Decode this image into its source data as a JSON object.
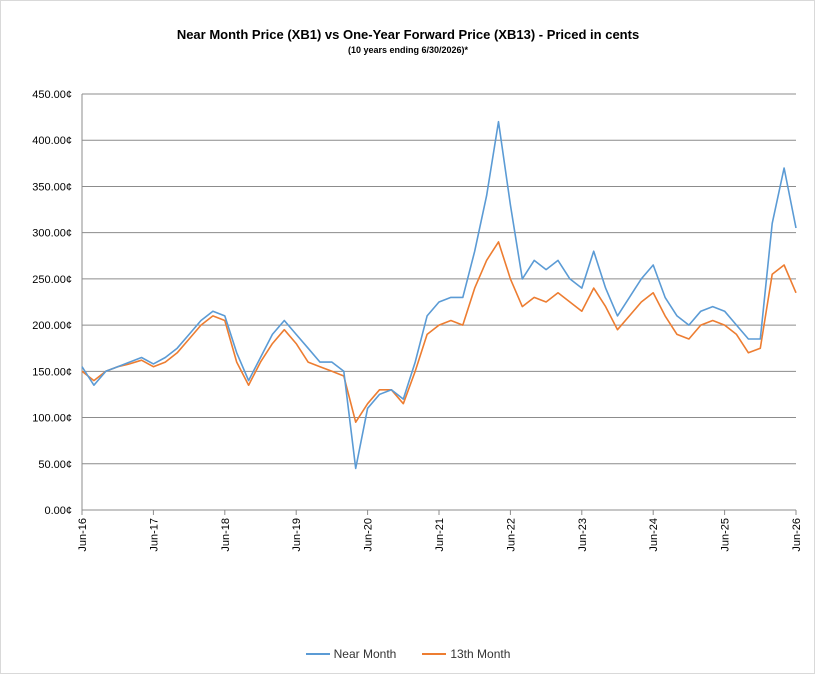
{
  "chart_data": {
    "type": "line",
    "title": "Near Month Price (XB1) vs One-Year Forward Price (XB13) - Priced in cents",
    "subtitle": "(10 years ending  6/30/2026)*",
    "y_ticks": [
      "0.00¢",
      "50.00¢",
      "100.00¢",
      "150.00¢",
      "200.00¢",
      "250.00¢",
      "300.00¢",
      "350.00¢",
      "400.00¢",
      "450.00¢"
    ],
    "ylim": [
      0,
      450
    ],
    "x_ticks": [
      "Jun-16",
      "Jun-17",
      "Jun-18",
      "Jun-19",
      "Jun-20",
      "Jun-21",
      "Jun-22",
      "Jun-23",
      "Jun-24",
      "Jun-25",
      "Jun-26"
    ],
    "xlim": [
      "2016-06",
      "2026-06"
    ],
    "grid": "horizontal",
    "legend_position": "bottom",
    "series": [
      {
        "name": "Near Month",
        "color": "#5b9bd5",
        "x": [
          "2016-06",
          "2016-08",
          "2016-10",
          "2016-12",
          "2017-02",
          "2017-04",
          "2017-06",
          "2017-08",
          "2017-10",
          "2017-12",
          "2018-02",
          "2018-04",
          "2018-06",
          "2018-08",
          "2018-10",
          "2018-12",
          "2019-02",
          "2019-04",
          "2019-06",
          "2019-08",
          "2019-10",
          "2019-12",
          "2020-02",
          "2020-04",
          "2020-06",
          "2020-08",
          "2020-10",
          "2020-12",
          "2021-02",
          "2021-04",
          "2021-06",
          "2021-08",
          "2021-10",
          "2021-12",
          "2022-02",
          "2022-04",
          "2022-06",
          "2022-08",
          "2022-10",
          "2022-12",
          "2023-02",
          "2023-04",
          "2023-06",
          "2023-08",
          "2023-10",
          "2023-12",
          "2024-02",
          "2024-04",
          "2024-06",
          "2024-08",
          "2024-10",
          "2024-12",
          "2025-02",
          "2025-04",
          "2025-06",
          "2025-08",
          "2025-10",
          "2025-12",
          "2026-02",
          "2026-04",
          "2026-06"
        ],
        "values": [
          155,
          135,
          150,
          155,
          160,
          165,
          158,
          165,
          175,
          190,
          205,
          215,
          210,
          170,
          140,
          165,
          190,
          205,
          190,
          175,
          160,
          160,
          150,
          45,
          110,
          125,
          130,
          120,
          160,
          210,
          225,
          230,
          230,
          280,
          340,
          420,
          330,
          250,
          270,
          260,
          270,
          250,
          240,
          280,
          240,
          210,
          230,
          250,
          265,
          230,
          210,
          200,
          215,
          220,
          215,
          200,
          185,
          185,
          310,
          370,
          305
        ]
      },
      {
        "name": "13th Month",
        "color": "#ed7d31",
        "x": [
          "2016-06",
          "2016-08",
          "2016-10",
          "2016-12",
          "2017-02",
          "2017-04",
          "2017-06",
          "2017-08",
          "2017-10",
          "2017-12",
          "2018-02",
          "2018-04",
          "2018-06",
          "2018-08",
          "2018-10",
          "2018-12",
          "2019-02",
          "2019-04",
          "2019-06",
          "2019-08",
          "2019-10",
          "2019-12",
          "2020-02",
          "2020-04",
          "2020-06",
          "2020-08",
          "2020-10",
          "2020-12",
          "2021-02",
          "2021-04",
          "2021-06",
          "2021-08",
          "2021-10",
          "2021-12",
          "2022-02",
          "2022-04",
          "2022-06",
          "2022-08",
          "2022-10",
          "2022-12",
          "2023-02",
          "2023-04",
          "2023-06",
          "2023-08",
          "2023-10",
          "2023-12",
          "2024-02",
          "2024-04",
          "2024-06",
          "2024-08",
          "2024-10",
          "2024-12",
          "2025-02",
          "2025-04",
          "2025-06",
          "2025-08",
          "2025-10",
          "2025-12",
          "2026-02",
          "2026-04",
          "2026-06"
        ],
        "values": [
          150,
          140,
          150,
          155,
          158,
          162,
          155,
          160,
          170,
          185,
          200,
          210,
          205,
          160,
          135,
          160,
          180,
          195,
          180,
          160,
          155,
          150,
          145,
          95,
          115,
          130,
          130,
          115,
          150,
          190,
          200,
          205,
          200,
          240,
          270,
          290,
          250,
          220,
          230,
          225,
          235,
          225,
          215,
          240,
          220,
          195,
          210,
          225,
          235,
          210,
          190,
          185,
          200,
          205,
          200,
          190,
          170,
          175,
          255,
          265,
          235
        ]
      }
    ]
  }
}
